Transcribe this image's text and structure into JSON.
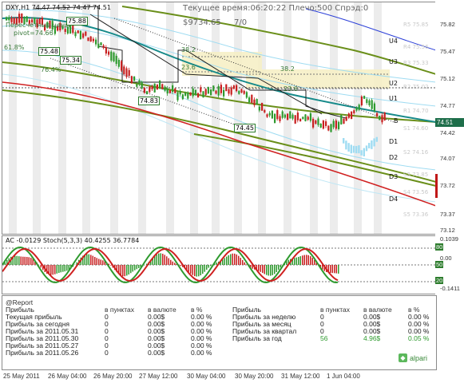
{
  "header": {
    "symbol_line": "DXY,H1  74.47 74.52 74.47 74.51",
    "server_time": "Текущее время:06:20:22 Плечо:500 Спрэд:0",
    "balance": "$9734.65",
    "ratio": "7/0",
    "pivot_note": "Пересчетные цены",
    "pivot_value": "pivot=74.66"
  },
  "main_chart": {
    "fib_labels": [
      "61.8%",
      "76.4%",
      "38.2",
      "23.6",
      "38.2",
      "23.6"
    ],
    "price_boxes": [
      "75.88",
      "75.48",
      "75.34",
      "74.83",
      "74.45"
    ],
    "level_labels": [
      "U4",
      "U3",
      "U2",
      "U1",
      "B",
      "D1",
      "D2",
      "D3",
      "D4"
    ],
    "r_s_labels": [
      "R5 75.85",
      "R4 75.56",
      "R3 75.33",
      "R2 75.02",
      "R1 74.70",
      "S1 74.60",
      "S2 74.16",
      "S3 73.85",
      "S4 73.56",
      "S5 73.36"
    ],
    "current_price": "74.51",
    "y_axis": [
      "75.82",
      "75.47",
      "75.12",
      "74.77",
      "74.42",
      "74.07",
      "73.72",
      "73.37",
      "73.12"
    ]
  },
  "oscillator": {
    "title": "AC -0.0129  Stoch(5,3,3) 40.4255 36.7784",
    "y_axis": [
      "0.1039",
      "80",
      "0.00",
      "50",
      "20",
      "-0.1411"
    ],
    "levels": [
      "80",
      "50",
      "20"
    ]
  },
  "report": {
    "title": "@Report",
    "col_headers": [
      "в пунктах",
      "в валюте",
      "в %"
    ],
    "left_rows": [
      {
        "label": "Прибыль",
        "points": "",
        "currency": "",
        "pct": ""
      },
      {
        "label": "Текущая прибыль",
        "points": "0",
        "currency": "0.00$",
        "pct": "0.00 %"
      },
      {
        "label": "Прибыль за сегодня",
        "points": "0",
        "currency": "0.00$",
        "pct": "0.00 %"
      },
      {
        "label": "Прибыль за 2011.05.31",
        "points": "0",
        "currency": "0.00$",
        "pct": "0.00 %"
      },
      {
        "label": "Прибыль за 2011.05.30",
        "points": "0",
        "currency": "0.00$",
        "pct": "0.00 %"
      },
      {
        "label": "Прибыль за 2011.05.27",
        "points": "0",
        "currency": "0.00$",
        "pct": "0.00 %"
      },
      {
        "label": "Прибыль за 2011.05.26",
        "points": "0",
        "currency": "0.00$",
        "pct": "0.00 %"
      }
    ],
    "right_rows": [
      {
        "label": "Прибыль",
        "points": "",
        "currency": "",
        "pct": ""
      },
      {
        "label": "Прибыль за неделю",
        "points": "0",
        "currency": "0.00$",
        "pct": "0.00 %"
      },
      {
        "label": "Прибыль за месяц",
        "points": "0",
        "currency": "0.00$",
        "pct": "0.00 %"
      },
      {
        "label": "Прибыль за квартал",
        "points": "0",
        "currency": "0.00$",
        "pct": "0.00 %"
      },
      {
        "label": "Прибыль за год",
        "points": "56",
        "currency": "4.96$",
        "pct": "0.05 %"
      }
    ],
    "brand": "alpari"
  },
  "x_axis": [
    "25 May 2011",
    "26 May 04:00",
    "26 May 20:00",
    "27 May 12:00",
    "30 May 04:00",
    "30 May 20:00",
    "31 May 12:00",
    "1 Jun 04:00"
  ],
  "colors": {
    "bull": "#2f9a2f",
    "bear": "#c82020",
    "ma_teal": "#168a8a",
    "ma_olive": "#6a8f1a",
    "ma_red": "#d02020",
    "ma_blue": "#2b3fd8",
    "ma_lightblue": "#8fd4f0",
    "fib_fill": "#f5efc8"
  }
}
